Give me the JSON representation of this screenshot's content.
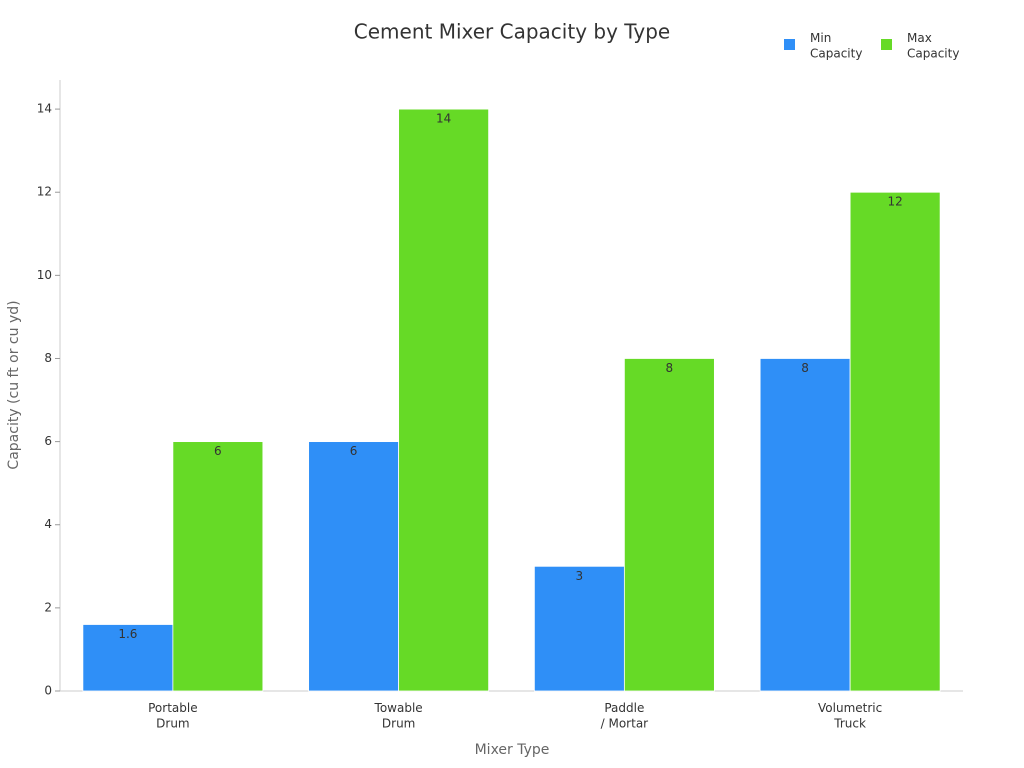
{
  "chart_data": {
    "type": "bar",
    "title": "Cement Mixer Capacity by Type",
    "x_label": "Mixer Type",
    "y_label": "Capacity (cu ft or cu yd)",
    "categories": [
      "Portable\nDrum",
      "Towable\nDrum",
      "Paddle\n/ Mortar",
      "Volumetric\nTruck"
    ],
    "series": [
      {
        "name": "Min\nCapacity",
        "color": "#2f8ff7",
        "values": [
          1.6,
          6,
          3,
          8
        ]
      },
      {
        "name": "Max\nCapacity",
        "color": "#66da26",
        "values": [
          6,
          14,
          8,
          12
        ]
      }
    ],
    "ylim": [
      0,
      14.7
    ],
    "yticks": [
      0,
      2,
      4,
      6,
      8,
      10,
      12,
      14
    ],
    "grid": false,
    "legend": "top-right"
  }
}
